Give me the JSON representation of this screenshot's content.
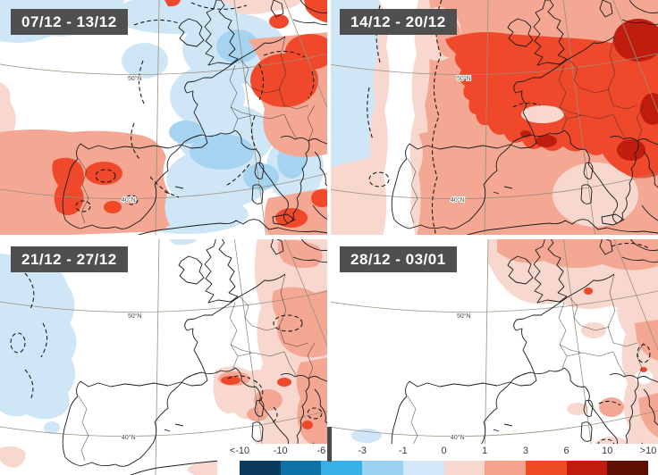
{
  "panels": [
    {
      "label": "07/12 - 13/12",
      "lat_top": "50°N",
      "lat_bottom": "40°N"
    },
    {
      "label": "14/12 - 20/12",
      "lat_top": "50°N",
      "lat_bottom": "40°N"
    },
    {
      "label": "21/12 - 27/12",
      "lat_top": "50°N",
      "lat_bottom": "40°N"
    },
    {
      "label": "28/12 - 03/01",
      "lat_top": "50°N",
      "lat bottom_unused": "",
      "lat_bottom": "40°N"
    }
  ],
  "colorbar": {
    "tick_labels": [
      "<-10",
      "-10",
      "-6",
      "-3",
      "-1",
      "0",
      "1",
      "3",
      "6",
      "10",
      ">10"
    ],
    "segment_colors": [
      "#0c3a5e",
      "#0f72a5",
      "#36b1e8",
      "#9cd2f1",
      "#d3e8f8",
      "#f8d8ce",
      "#f4a28e",
      "#ee4b25",
      "#bf1c0d",
      "#5f0f04"
    ]
  },
  "map_palette": {
    "neutral": "#ffffff",
    "cool_light": "#cfe6f7",
    "cool": "#a6d3f0",
    "warm_light": "#f8d8ce",
    "warm": "#f4a793",
    "warm_strong": "#f0482a",
    "warm_dark": "#bf1e0e"
  },
  "label_box_color": "#4f4f4f"
}
